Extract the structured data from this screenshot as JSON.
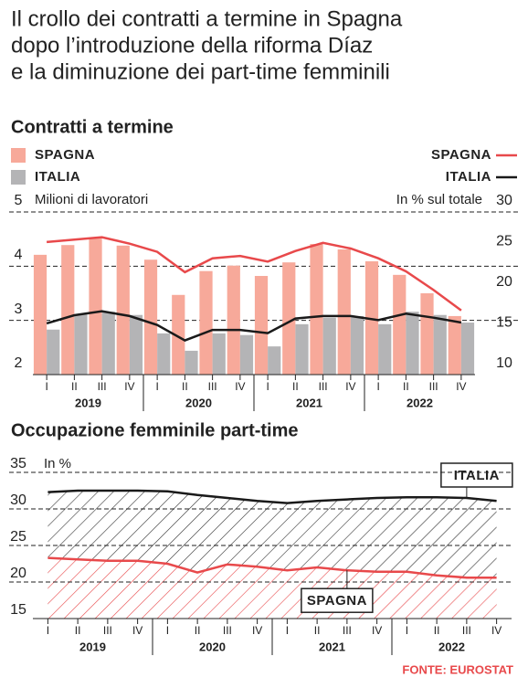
{
  "headline": [
    "Il crollo dei contratti a termine in Spagna",
    "dopo l’introduzione della riforma Díaz",
    "e la diminuzione dei part-time femminili"
  ],
  "source": "FONTE: EUROSTAT",
  "chart_data": [
    {
      "type": "bar",
      "title": "Contratti a termine",
      "ylabel": "Milioni di lavoratori",
      "y2label": "In % sul totale",
      "categories": [
        "I",
        "II",
        "III",
        "IV",
        "I",
        "II",
        "III",
        "IV",
        "I",
        "II",
        "III",
        "IV",
        "I",
        "II",
        "III",
        "IV"
      ],
      "years": [
        "2019",
        "2020",
        "2021",
        "2022"
      ],
      "ylim": [
        2,
        5
      ],
      "yticks": [
        2,
        3,
        4,
        5
      ],
      "y2lim": [
        10,
        30
      ],
      "y2ticks": [
        10,
        15,
        20,
        25,
        30
      ],
      "grid": true,
      "series": [
        {
          "name": "SPAGNA",
          "type": "bar",
          "color": "#f7a99a",
          "values": [
            4.21,
            4.39,
            4.51,
            4.38,
            4.12,
            3.47,
            3.91,
            4.01,
            3.82,
            4.07,
            4.41,
            4.31,
            4.09,
            3.84,
            3.5,
            3.08
          ]
        },
        {
          "name": "ITALIA",
          "type": "bar",
          "color": "#b4b4b6",
          "values": [
            2.83,
            3.11,
            3.16,
            3.1,
            2.76,
            2.44,
            2.76,
            2.73,
            2.52,
            2.93,
            3.05,
            3.08,
            2.93,
            3.16,
            3.1,
            2.96
          ]
        },
        {
          "name": "SPAGNA",
          "type": "line",
          "axis": "y2",
          "color": "#e8494b",
          "values": [
            26.3,
            26.6,
            26.9,
            26.1,
            25.1,
            22.6,
            24.3,
            24.6,
            23.9,
            25.2,
            26.2,
            25.5,
            24.3,
            22.7,
            20.4,
            17.9
          ]
        },
        {
          "name": "ITALIA",
          "type": "line",
          "axis": "y2",
          "color": "#1a1a1a",
          "values": [
            16.3,
            17.3,
            17.8,
            17.2,
            16.1,
            14.2,
            15.5,
            15.5,
            15.1,
            16.9,
            17.2,
            17.2,
            16.7,
            17.5,
            17.0,
            16.4
          ]
        }
      ]
    },
    {
      "type": "area",
      "title": "Occupazione femminile part-time",
      "ylabel": "In %",
      "categories": [
        "I",
        "II",
        "III",
        "IV",
        "I",
        "II",
        "III",
        "IV",
        "I",
        "II",
        "III",
        "IV",
        "I",
        "II",
        "III",
        "IV"
      ],
      "years": [
        "2019",
        "2020",
        "2021",
        "2022"
      ],
      "ylim": [
        15,
        35
      ],
      "yticks": [
        15,
        20,
        25,
        30,
        35
      ],
      "grid": true,
      "series": [
        {
          "name": "ITALIA",
          "color": "#1a1a1a",
          "values": [
            32.3,
            32.5,
            32.5,
            32.5,
            32.4,
            31.9,
            31.5,
            31.1,
            30.8,
            31.1,
            31.3,
            31.5,
            31.6,
            31.6,
            31.5,
            31.1
          ]
        },
        {
          "name": "SPAGNA",
          "color": "#e8494b",
          "values": [
            23.3,
            23.1,
            22.9,
            22.9,
            22.5,
            21.3,
            22.4,
            22.1,
            21.6,
            22.0,
            21.6,
            21.4,
            21.4,
            20.9,
            20.6,
            20.6
          ]
        }
      ]
    }
  ]
}
